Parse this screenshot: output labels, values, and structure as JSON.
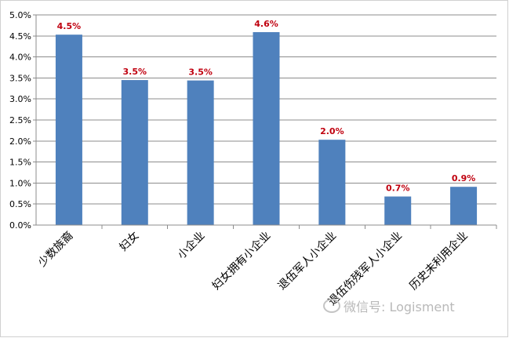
{
  "chart_data": {
    "type": "bar",
    "categories": [
      "少数族裔",
      "妇女",
      "小企业",
      "妇女拥有小企业",
      "退伍军人小企业",
      "退伍伤残军人小企业",
      "历史未利用企业"
    ],
    "values": [
      4.5,
      3.5,
      3.5,
      4.6,
      2.0,
      0.7,
      0.9
    ],
    "data_labels": [
      "4.5%",
      "3.5%",
      "3.5%",
      "4.6%",
      "2.0%",
      "0.7%",
      "0.9%"
    ],
    "values_precise": [
      4.53,
      3.45,
      3.44,
      4.59,
      2.03,
      0.68,
      0.91
    ],
    "ylim": [
      0,
      5
    ],
    "ytick_values": [
      0,
      0.5,
      1.0,
      1.5,
      2.0,
      2.5,
      3.0,
      3.5,
      4.0,
      4.5,
      5.0
    ],
    "yticks": [
      "0.0%",
      "0.5%",
      "1.0%",
      "1.5%",
      "2.0%",
      "2.5%",
      "3.0%",
      "3.5%",
      "4.0%",
      "4.5%",
      "5.0%"
    ],
    "title": "",
    "xlabel": "",
    "ylabel": "",
    "grid": true,
    "legend": "none",
    "bar_color": "#4f81bd",
    "label_color": "#c0000f",
    "grid_color": "#8c8c8c"
  },
  "watermark": {
    "text": "微信号: Logisment",
    "icon": "wechat-icon"
  }
}
